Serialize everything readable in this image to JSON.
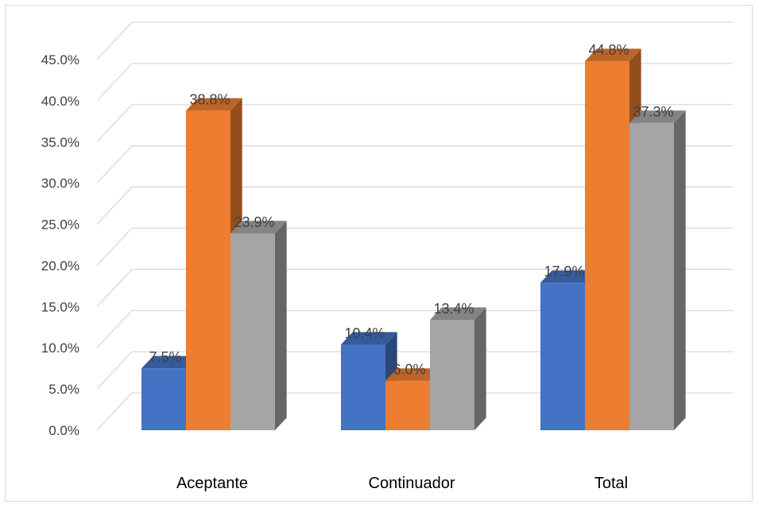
{
  "chart_data": {
    "type": "bar",
    "style": "3d-clustered-column",
    "categories": [
      "Aceptante",
      "Continuador",
      "Total"
    ],
    "series": [
      {
        "values": [
          7.5,
          10.4,
          17.9
        ],
        "color": "#4472C4",
        "labels": [
          "7.5%",
          "10.4%",
          "17.9%"
        ]
      },
      {
        "values": [
          38.8,
          6.0,
          44.8
        ],
        "color": "#ED7D31",
        "labels": [
          "38.8%",
          "6.0%",
          "44.8%"
        ]
      },
      {
        "values": [
          23.9,
          13.4,
          37.3
        ],
        "color": "#A5A5A5",
        "labels": [
          "23.9%",
          "13.4%",
          "37.3%"
        ]
      }
    ],
    "y_ticks": [
      "0.0%",
      "5.0%",
      "10.0%",
      "15.0%",
      "20.0%",
      "25.0%",
      "30.0%",
      "35.0%",
      "40.0%",
      "45.0%"
    ],
    "ylim": [
      0,
      45
    ],
    "grid": true,
    "legend": "none",
    "title": "",
    "xlabel": "",
    "ylabel": ""
  }
}
